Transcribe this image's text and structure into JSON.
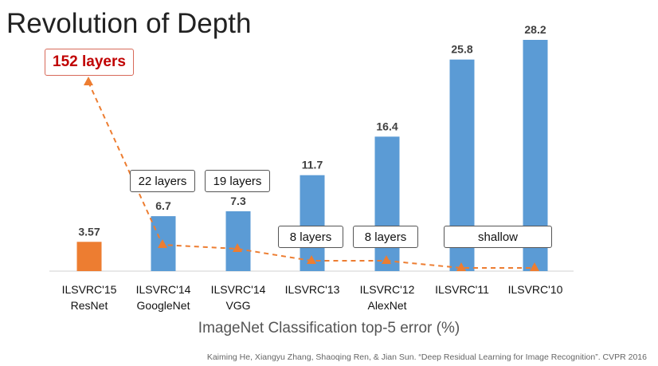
{
  "title": "Revolution of Depth",
  "chart_data": {
    "type": "bar",
    "categories": [
      [
        "ILSVRC'15",
        "ResNet"
      ],
      [
        "ILSVRC'14",
        "GoogleNet"
      ],
      [
        "ILSVRC'14",
        "VGG"
      ],
      [
        "ILSVRC'13",
        ""
      ],
      [
        "ILSVRC'12",
        "AlexNet"
      ],
      [
        "ILSVRC'11",
        ""
      ],
      [
        "ILSVRC'10",
        ""
      ]
    ],
    "values": [
      3.57,
      6.7,
      7.3,
      11.7,
      16.4,
      25.8,
      28.2
    ],
    "value_labels": [
      "3.57",
      "6.7",
      "7.3",
      "11.7",
      "16.4",
      "25.8",
      "28.2"
    ],
    "bar_colors": [
      "#ED7D31",
      "#5B9BD5",
      "#5B9BD5",
      "#5B9BD5",
      "#5B9BD5",
      "#5B9BD5",
      "#5B9BD5"
    ],
    "xlabel": "ImageNet Classification top-5 error (%)",
    "ylim": [
      0,
      28.2
    ],
    "layers_line": {
      "color": "#ED7D31",
      "values": [
        152,
        22,
        19,
        8,
        8,
        null,
        null
      ],
      "labels": [
        "152 layers",
        "22 layers",
        "19 layers",
        "8 layers",
        "8 layers",
        "shallow",
        ""
      ]
    }
  },
  "citation": "Kaiming He, Xiangyu Zhang, Shaoqing Ren, & Jian Sun. “Deep Residual Learning for Image Recognition”. CVPR 2016"
}
